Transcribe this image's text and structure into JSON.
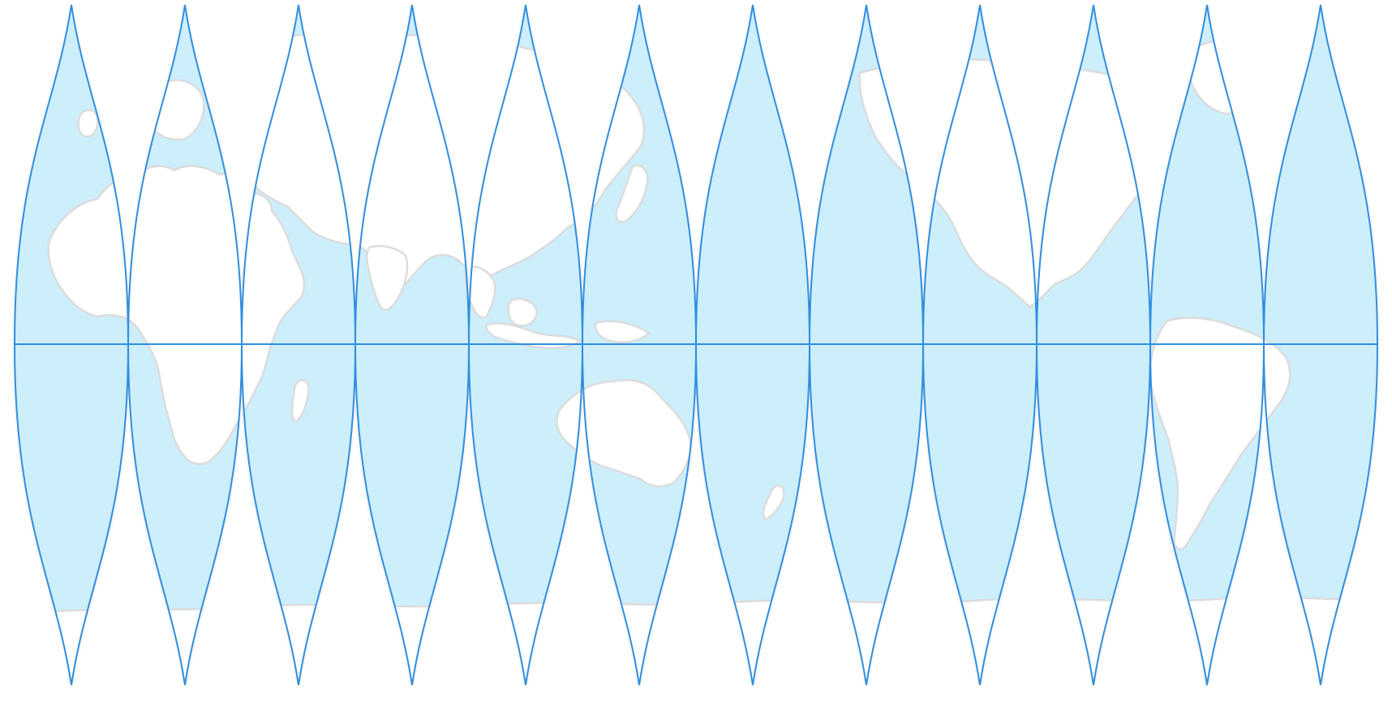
{
  "map": {
    "projection": "interrupted-gores",
    "gore_count": 12,
    "has_equator": true,
    "colors": {
      "background": "#ffffff",
      "ocean": "#cdeefb",
      "land": "#ffffff",
      "coastline": "#dcdcdc",
      "gore_outline": "#2f8fe0",
      "equator": "#2f8fe0",
      "shadow": "#f6d9d9"
    },
    "features": [
      "land-europe-africa",
      "land-asia",
      "land-indian-subcontinent",
      "land-southeast-asia",
      "land-australia",
      "land-new-zealand",
      "land-north-america",
      "land-greenland",
      "land-south-america",
      "land-antarctica"
    ]
  }
}
